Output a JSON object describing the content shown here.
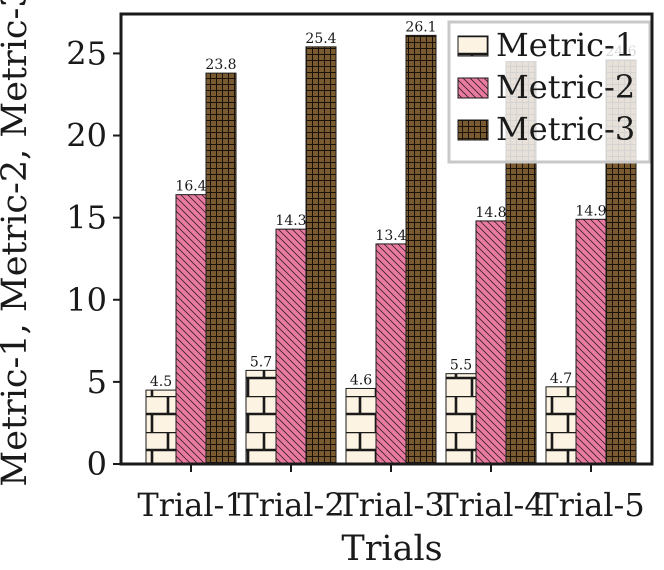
{
  "chart_data": {
    "type": "bar",
    "title": "",
    "xlabel": "Trials",
    "ylabel": "Metric-1, Metric-2, Metric-3",
    "categories": [
      "Trial-1",
      "Trial-2",
      "Trial-3",
      "Trial-4",
      "Trial-5"
    ],
    "ylim": [
      0,
      27.4
    ],
    "yticks": [
      0,
      5,
      10,
      15,
      20,
      25
    ],
    "grid": false,
    "legend_position": "top-right",
    "series": [
      {
        "name": "Metric-1",
        "values": [
          4.5,
          5.7,
          4.6,
          5.5,
          4.7
        ],
        "labels": [
          "4.5",
          "5.7",
          "4.6",
          "5.5",
          "4.7"
        ],
        "fill": "#fdf3e3",
        "pattern": "brick"
      },
      {
        "name": "Metric-2",
        "values": [
          16.4,
          14.3,
          13.4,
          14.8,
          14.9
        ],
        "labels": [
          "16.4",
          "14.3",
          "13.4",
          "14.8",
          "14.9"
        ],
        "fill": "#e97aa0",
        "pattern": "diagonal"
      },
      {
        "name": "Metric-3",
        "values": [
          23.8,
          25.4,
          26.1,
          24.5,
          24.6
        ],
        "labels": [
          "23.8",
          "25.4",
          "26.1",
          "",
          "24.6"
        ],
        "fill": "#7a5a30",
        "pattern": "grid"
      }
    ]
  }
}
